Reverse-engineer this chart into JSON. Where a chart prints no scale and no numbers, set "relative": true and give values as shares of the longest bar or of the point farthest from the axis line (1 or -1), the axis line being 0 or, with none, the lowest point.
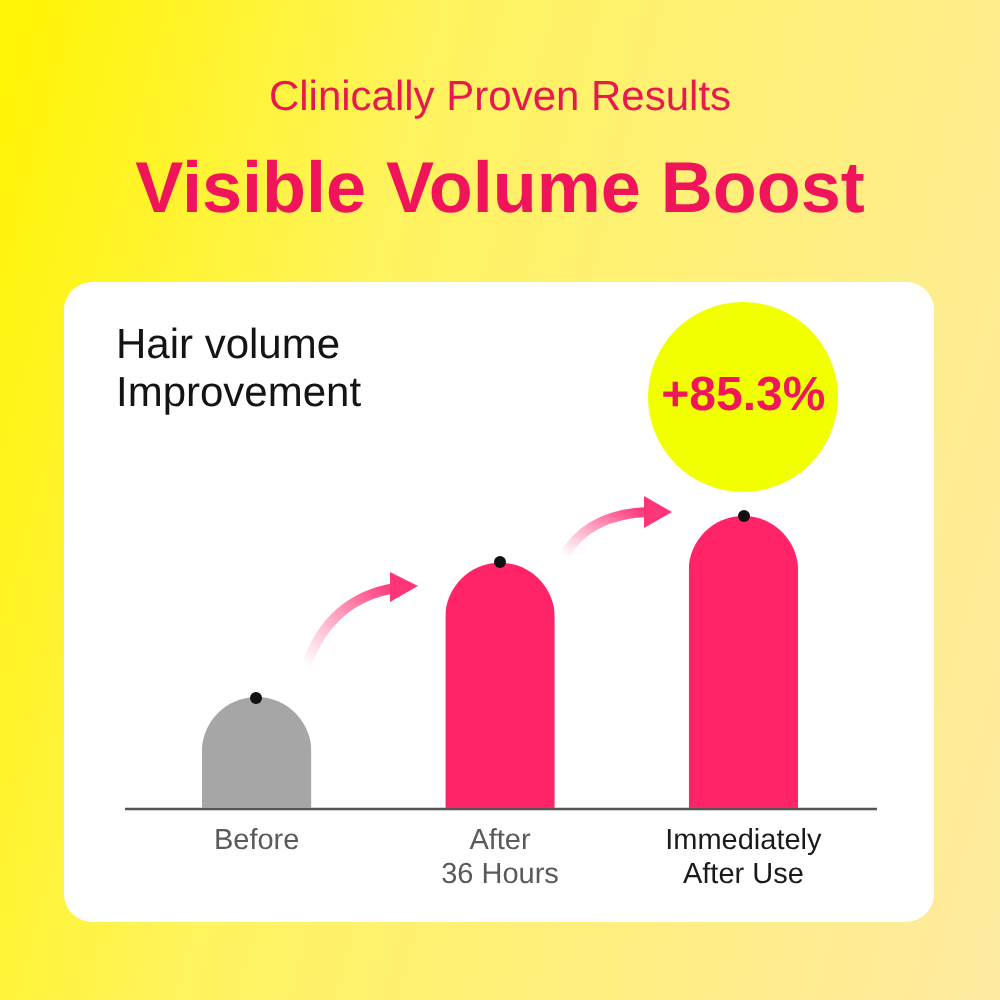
{
  "chart_data": {
    "type": "bar",
    "subtitle": "Clinically Proven Results",
    "title": "Visible Volume Boost",
    "ylabel": "Hair volume Improvement",
    "categories": [
      "Before",
      "After\n36 Hours",
      "Immediately\nAfter Use"
    ],
    "values": [
      0.38,
      0.84,
      1
    ],
    "colors": [
      "#a6a6a6",
      "#ff2468",
      "#ff2468"
    ],
    "relative": true,
    "annotations": [
      "+85.3%"
    ]
  }
}
